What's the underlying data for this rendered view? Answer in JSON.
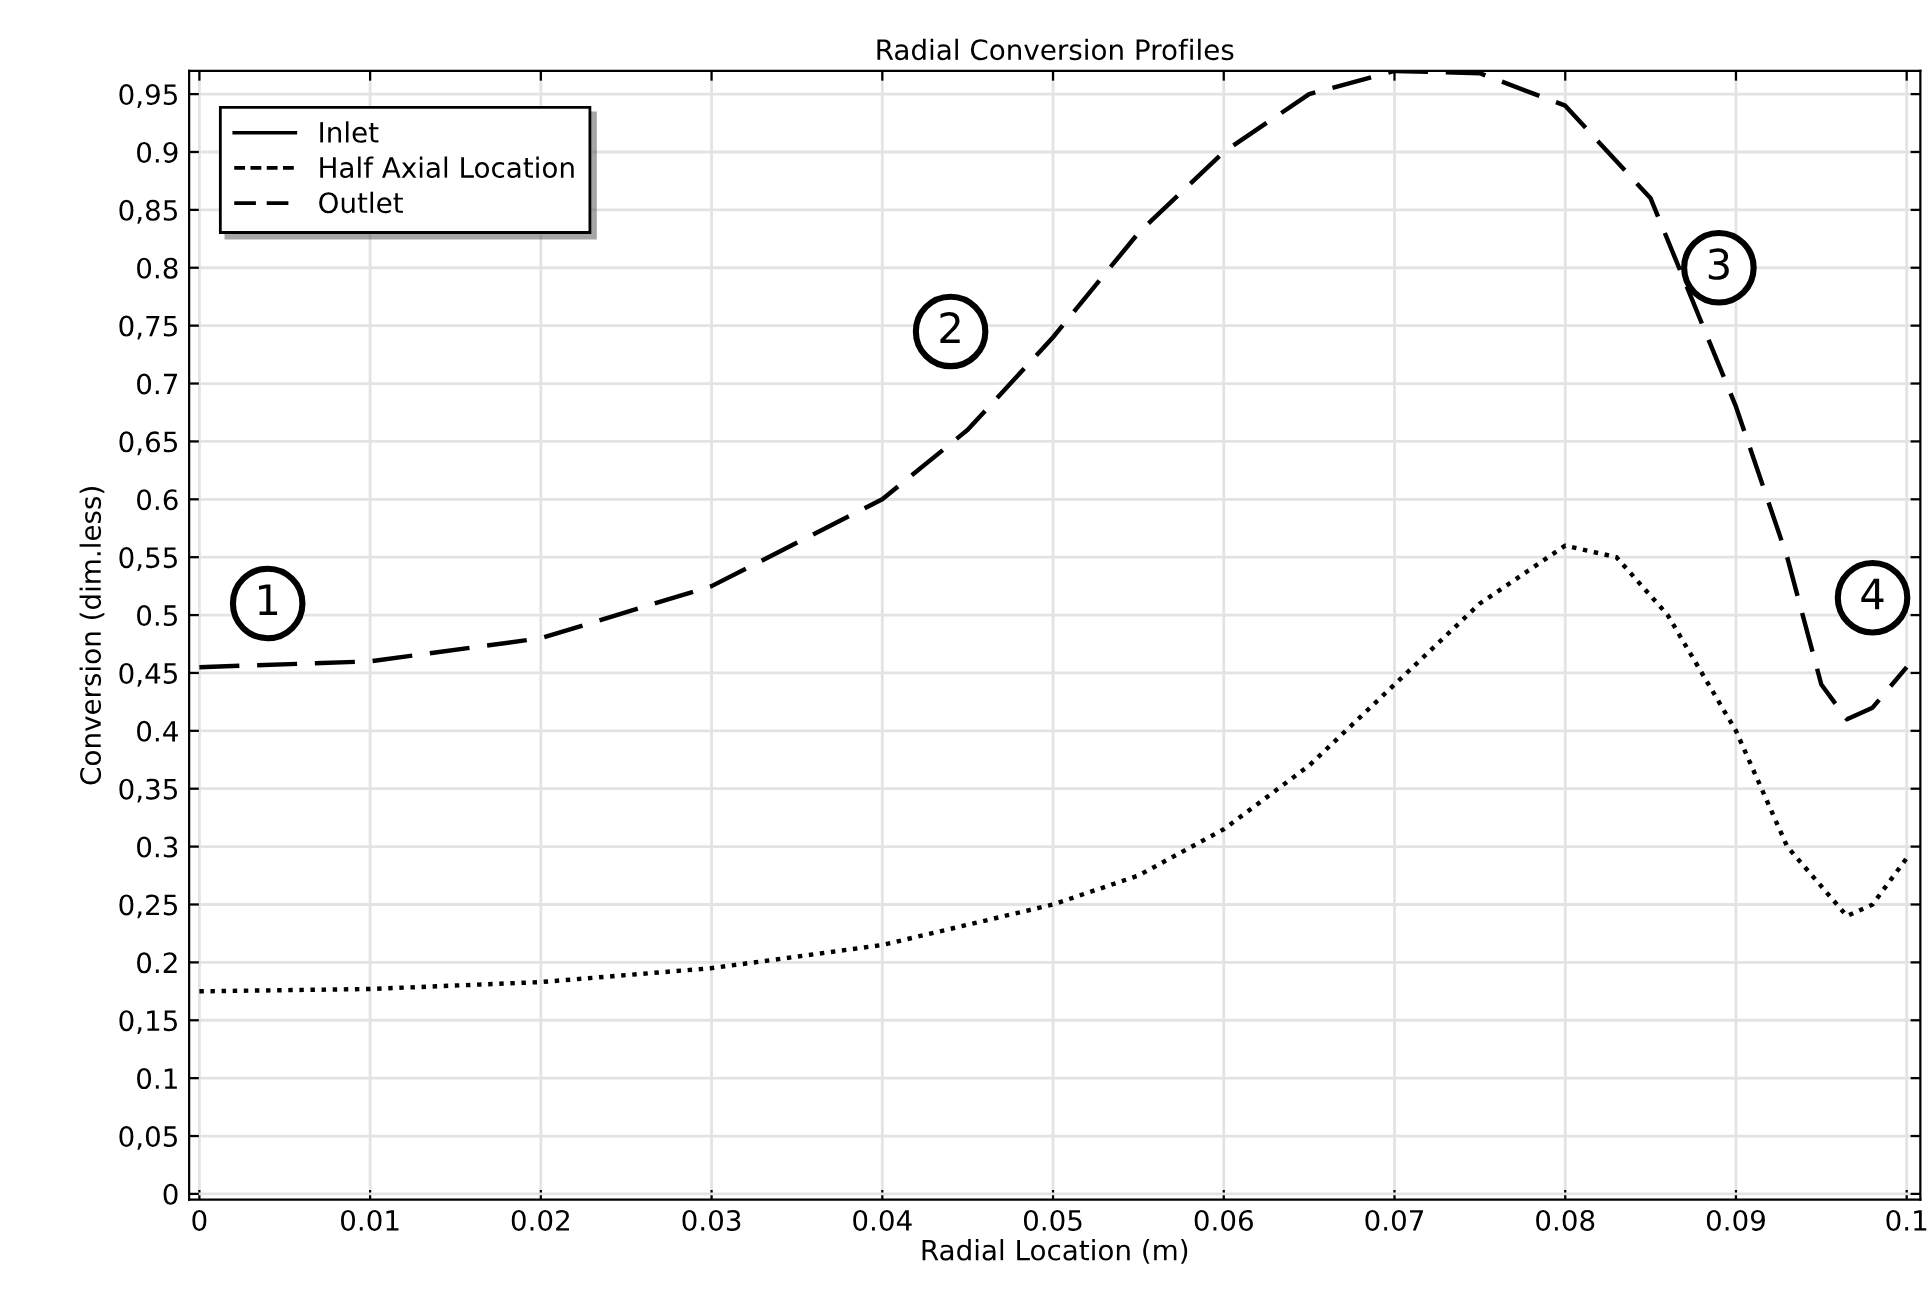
{
  "chart_data": {
    "type": "line",
    "title": "Radial Conversion Profiles",
    "xlabel": "Radial Location (m)",
    "ylabel": "Conversion (dim.less)",
    "xlim": [
      -0.0006,
      0.1008
    ],
    "ylim": [
      -0.005,
      0.97
    ],
    "xticks": [
      0,
      0.01,
      0.02,
      0.03,
      0.04,
      0.05,
      0.06,
      0.07,
      0.08,
      0.09,
      0.1
    ],
    "yticks": [
      0,
      {
        "value": 0.05,
        "label": "0,05"
      },
      0.1,
      {
        "value": 0.15,
        "label": "0,15"
      },
      0.2,
      {
        "value": 0.25,
        "label": "0,25"
      },
      0.3,
      {
        "value": 0.35,
        "label": "0,35"
      },
      0.4,
      {
        "value": 0.45,
        "label": "0,45"
      },
      0.5,
      {
        "value": 0.55,
        "label": "0,55"
      },
      0.6,
      {
        "value": 0.65,
        "label": "0,65"
      },
      0.7,
      {
        "value": 0.75,
        "label": "0,75"
      },
      0.8,
      {
        "value": 0.85,
        "label": "0,85"
      },
      0.9,
      {
        "value": 0.95,
        "label": "0,95"
      }
    ],
    "grid": true,
    "legend": "top left",
    "series": [
      {
        "name": "Inlet",
        "color": "#000000",
        "line_style": "solid"
      },
      {
        "name": "Half Axial Location",
        "color": "#000000",
        "line_style": "dotted",
        "x": [
          0,
          0.01,
          0.02,
          0.03,
          0.04,
          0.05,
          0.055,
          0.06,
          0.065,
          0.07,
          0.075,
          0.08,
          0.083,
          0.086,
          0.09,
          0.093,
          0.0965,
          0.098,
          0.1
        ],
        "values": [
          0.175,
          0.177,
          0.183,
          0.195,
          0.215,
          0.25,
          0.275,
          0.315,
          0.37,
          0.44,
          0.51,
          0.56,
          0.55,
          0.5,
          0.4,
          0.3,
          0.24,
          0.25,
          0.29
        ]
      },
      {
        "name": "Outlet",
        "color": "#000000",
        "line_style": "dashed",
        "x": [
          0,
          0.01,
          0.02,
          0.03,
          0.04,
          0.045,
          0.05,
          0.055,
          0.06,
          0.065,
          0.07,
          0.075,
          0.08,
          0.085,
          0.09,
          0.093,
          0.095,
          0.0965,
          0.098,
          0.1
        ],
        "values": [
          0.455,
          0.46,
          0.48,
          0.525,
          0.6,
          0.66,
          0.74,
          0.83,
          0.9,
          0.95,
          0.97,
          0.968,
          0.94,
          0.86,
          0.68,
          0.55,
          0.44,
          0.41,
          0.42,
          0.455
        ]
      }
    ],
    "annotations": [
      {
        "text": "1",
        "x": 0.004,
        "y": 0.51
      },
      {
        "text": "2",
        "x": 0.044,
        "y": 0.745
      },
      {
        "text": "3",
        "x": 0.089,
        "y": 0.8
      },
      {
        "text": "4",
        "x": 0.098,
        "y": 0.515
      }
    ]
  }
}
